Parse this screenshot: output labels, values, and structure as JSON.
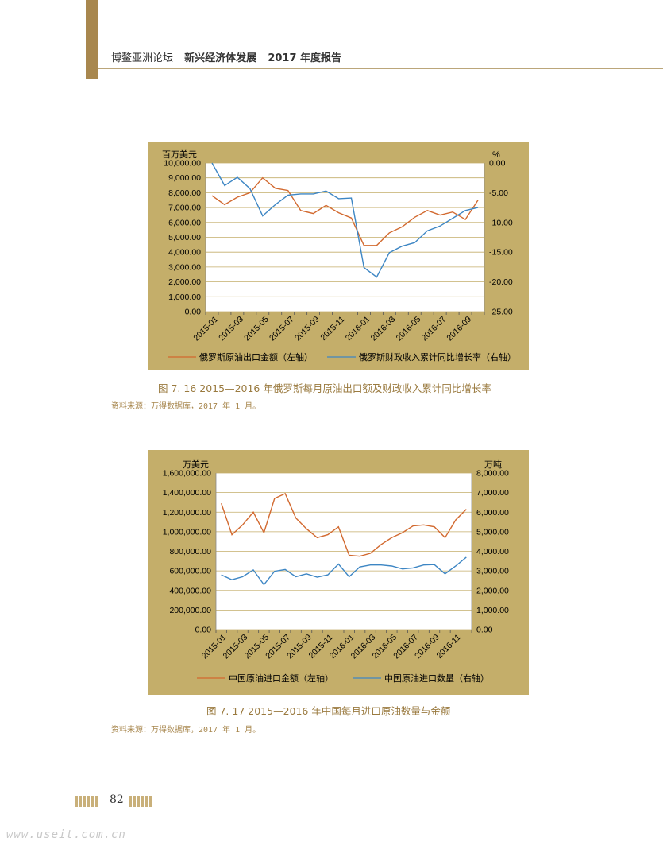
{
  "header": {
    "forum": "博鳌亚洲论坛",
    "title": "新兴经济体发展",
    "year_report": "2017 年度报告"
  },
  "figure1": {
    "caption": "图 7. 16   2015—2016 年俄罗斯每月原油出口额及财政收入累计同比增长率",
    "source": "资料来源：万得数据库，2017 年 1 月。"
  },
  "figure2": {
    "caption": "图 7. 17   2015—2016 年中国每月进口原油数量与金额",
    "source": "资料来源：万得数据库，2017 年 1 月。"
  },
  "footer": {
    "page_number": "82",
    "watermark": "www.useit.com.cn"
  },
  "chart_data": [
    {
      "type": "line",
      "left_unit": "百万美元",
      "right_unit": "%",
      "y_left_lim": [
        0,
        10000
      ],
      "y_right_lim": [
        -25,
        0
      ],
      "y_left_ticks": [
        "0.00",
        "1,000.00",
        "2,000.00",
        "3,000.00",
        "4,000.00",
        "5,000.00",
        "6,000.00",
        "7,000.00",
        "8,000.00",
        "9,000.00",
        "10,000.00"
      ],
      "y_right_ticks": [
        "-25.00",
        "-20.00",
        "-15.00",
        "-10.00",
        "-5.00",
        "0.00"
      ],
      "x_ticks": [
        "2015-01",
        "2015-03",
        "2015-05",
        "2015-07",
        "2015-09",
        "2015-11",
        "2016-01",
        "2016-03",
        "2016-05",
        "2016-07",
        "2016-09"
      ],
      "series": [
        {
          "name": "俄罗斯原油出口金额（左轴）",
          "axis": "left",
          "color": "#d2692f",
          "values": [
            7800,
            7200,
            7700,
            8000,
            9000,
            8300,
            8150,
            6800,
            6600,
            7150,
            6650,
            6300,
            4450,
            4450,
            5300,
            5700,
            6350,
            6800,
            6500,
            6700,
            6200,
            7500
          ]
        },
        {
          "name": "俄罗斯财政收入累计同比增长率（右轴）",
          "axis": "right",
          "color": "#3d86c4",
          "values": [
            0,
            -3.8,
            -2.4,
            -4.3,
            -8.9,
            -7.0,
            -5.4,
            -5.2,
            -5.2,
            -4.7,
            -6.0,
            -5.9,
            -17.6,
            -19.2,
            -15.1,
            -14.0,
            -13.4,
            -11.4,
            -10.6,
            -9.3,
            -8.0,
            -7.5
          ]
        }
      ],
      "legend_position": "bottom"
    },
    {
      "type": "line",
      "left_unit": "万美元",
      "right_unit": "万吨",
      "y_left_lim": [
        0,
        1600000
      ],
      "y_right_lim": [
        0,
        8000
      ],
      "y_left_ticks": [
        "0.00",
        "200,000.00",
        "400,000.00",
        "600,000.00",
        "800,000.00",
        "1,000,000.00",
        "1,200,000.00",
        "1,400,000.00",
        "1,600,000.00"
      ],
      "y_right_ticks": [
        "0.00",
        "1,000.00",
        "2,000.00",
        "3,000.00",
        "4,000.00",
        "5,000.00",
        "6,000.00",
        "7,000.00",
        "8,000.00"
      ],
      "x_ticks": [
        "2015-01",
        "2015-03",
        "2015-05",
        "2015-07",
        "2015-09",
        "2015-11",
        "2016-01",
        "2016-03",
        "2016-05",
        "2016-07",
        "2016-09",
        "2016-11"
      ],
      "series": [
        {
          "name": "中国原油进口金额（左轴）",
          "axis": "left",
          "color": "#d2692f",
          "values": [
            1290000,
            970000,
            1070000,
            1200000,
            990000,
            1340000,
            1390000,
            1140000,
            1030000,
            940000,
            970000,
            1050000,
            760000,
            750000,
            780000,
            870000,
            940000,
            990000,
            1060000,
            1070000,
            1050000,
            940000,
            1120000,
            1230000
          ]
        },
        {
          "name": "中国原油进口数量（右轴）",
          "axis": "right",
          "color": "#3d86c4",
          "values": [
            2800,
            2550,
            2700,
            3050,
            2300,
            2980,
            3070,
            2700,
            2850,
            2680,
            2800,
            3350,
            2700,
            3200,
            3300,
            3300,
            3250,
            3100,
            3150,
            3300,
            3320,
            2850,
            3250,
            3700
          ]
        }
      ],
      "legend_position": "bottom"
    }
  ]
}
